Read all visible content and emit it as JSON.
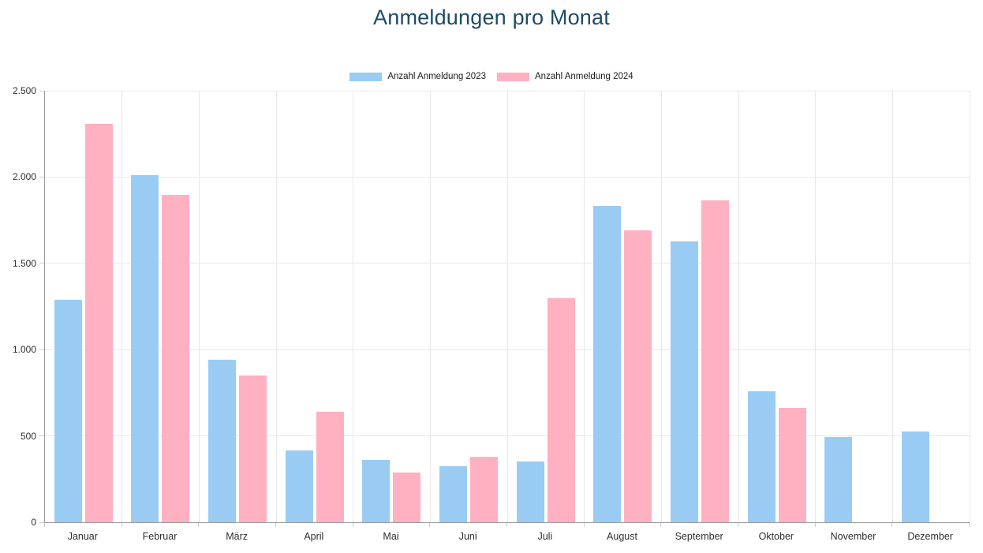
{
  "title": "Anmeldungen pro Monat",
  "colors": {
    "title": "#1d4b66",
    "series_2023": "#9accf3",
    "series_2024": "#ffb0c1",
    "grid": "#e8e8e8",
    "axis": "#9b9b9b",
    "tick_text": "#2e2e2e"
  },
  "legend": [
    {
      "label": "Anzahl Anmeldung 2023",
      "color": "#9accf3"
    },
    {
      "label": "Anzahl Anmeldung 2024",
      "color": "#ffb0c1"
    }
  ],
  "chart_data": {
    "type": "bar",
    "title": "Anmeldungen pro Monat",
    "categories": [
      "Januar",
      "Februar",
      "März",
      "April",
      "Mai",
      "Juni",
      "Juli",
      "August",
      "September",
      "Oktober",
      "November",
      "Dezember"
    ],
    "series": [
      {
        "name": "Anzahl Anmeldung 2023",
        "color": "#9accf3",
        "values": [
          1290,
          2010,
          940,
          415,
          360,
          325,
          350,
          1835,
          1625,
          760,
          495,
          525
        ]
      },
      {
        "name": "Anzahl Anmeldung 2024",
        "color": "#ffb0c1",
        "values": [
          2310,
          1895,
          850,
          640,
          290,
          380,
          1300,
          1690,
          1865,
          665,
          0,
          0
        ]
      }
    ],
    "xlabel": "",
    "ylabel": "",
    "ylim": [
      0,
      2500
    ],
    "ytick_step": 500,
    "ytick_labels": [
      "0",
      "500",
      "1.000",
      "1.500",
      "2.000",
      "2.500"
    ],
    "grid": true,
    "legend_position": "top"
  }
}
